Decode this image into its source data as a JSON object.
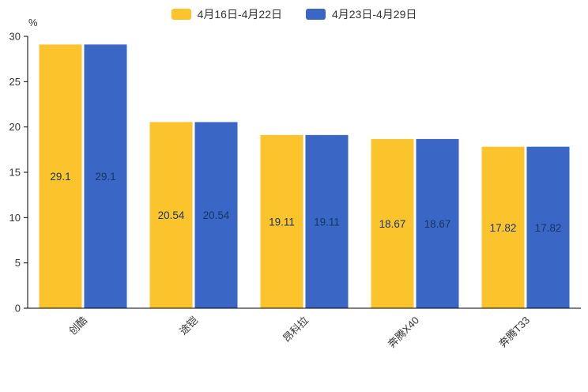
{
  "legend": {
    "items": [
      {
        "label": "4月16日-4月22日"
      },
      {
        "label": "4月23日-4月29日"
      }
    ]
  },
  "chart_data": {
    "type": "bar",
    "title": "",
    "categories": [
      "创酷",
      "途铠",
      "昂科拉",
      "奔腾X40",
      "奔腾T33"
    ],
    "series": [
      {
        "name": "4月16日-4月22日",
        "color": "#FBC32C",
        "values": [
          29.1,
          20.54,
          19.11,
          18.67,
          17.82
        ]
      },
      {
        "name": "4月23日-4月29日",
        "color": "#3A66C5",
        "values": [
          29.1,
          20.54,
          19.11,
          18.67,
          17.82
        ]
      }
    ],
    "value_labels": [
      [
        "29.1",
        "20.54",
        "19.11",
        "18.67",
        "17.82"
      ],
      [
        "29.1",
        "20.54",
        "19.11",
        "18.67",
        "17.82"
      ]
    ],
    "xlabel": "",
    "ylabel": "%",
    "ylim": [
      0,
      30
    ],
    "yticks": [
      "0",
      "5",
      "10",
      "15",
      "20",
      "25",
      "30"
    ],
    "grid": false,
    "legend_position": "top",
    "colors": {
      "axis": "#000000",
      "tick_text": "#333333",
      "value_label_text": "#16365F",
      "category_text": "#333333"
    }
  }
}
